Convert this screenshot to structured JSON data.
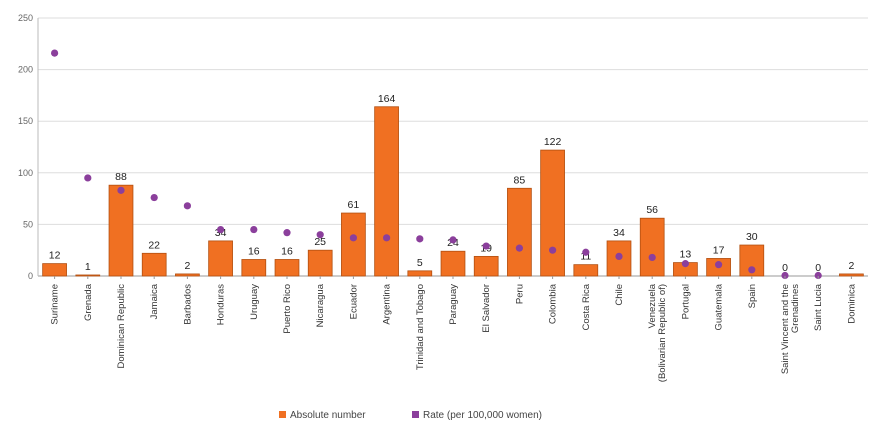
{
  "chart_data": {
    "type": "bar",
    "categories": [
      "Suriname",
      "Grenada",
      "Dominican Republic",
      "Jamaica",
      "Barbados",
      "Honduras",
      "Uruguay",
      "Puerto Rico",
      "Nicaragua",
      "Ecuador",
      "Argentina",
      "Trinidad and Tobago",
      "Paraguay",
      "El Salvador",
      "Peru",
      "Colombia",
      "Costa Rica",
      "Chile",
      "Venezuela (Bolivarian Republic of)",
      "Portugal",
      "Guatemala",
      "Spain",
      "Saint Vincent and the Grenadines",
      "Saint Lucia",
      "Dominica"
    ],
    "series": [
      {
        "name": "Absolute number",
        "type": "bar",
        "color": "#f07022",
        "values": [
          12,
          1,
          88,
          22,
          2,
          34,
          16,
          16,
          25,
          61,
          164,
          5,
          24,
          19,
          85,
          122,
          11,
          34,
          56,
          13,
          17,
          30,
          0,
          0,
          2
        ]
      },
      {
        "name": "Rate (per 100,000 women)",
        "type": "scatter",
        "color": "#8b3f9c",
        "values": [
          216,
          95,
          83,
          76,
          68,
          45,
          45,
          42,
          40,
          37,
          37,
          36,
          35,
          29,
          27,
          25,
          23,
          19,
          18,
          12,
          11,
          6,
          0.5,
          0.5,
          null
        ]
      }
    ],
    "ylim": [
      0,
      250
    ],
    "yticks": [
      0,
      50,
      100,
      150,
      200,
      250
    ],
    "grid": true,
    "legend": "bottom-center"
  }
}
